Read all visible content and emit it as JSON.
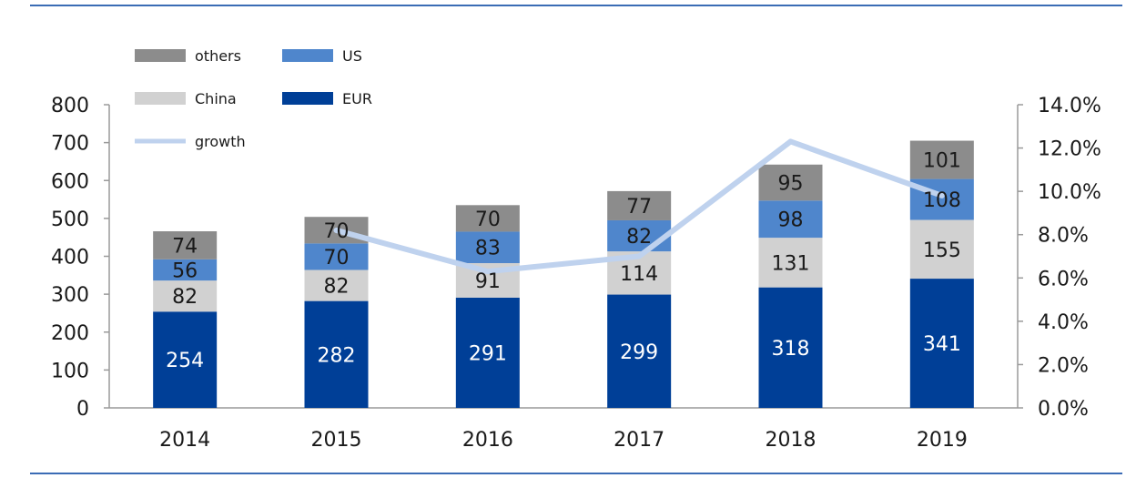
{
  "chart_data": {
    "type": "bar",
    "stacked": true,
    "categories": [
      "2014",
      "2015",
      "2016",
      "2017",
      "2018",
      "2019"
    ],
    "series": [
      {
        "name": "EUR",
        "values": [
          254,
          282,
          291,
          299,
          318,
          341
        ],
        "color": "#003f97",
        "label_color": "#ffffff"
      },
      {
        "name": "China",
        "values": [
          82,
          82,
          91,
          114,
          131,
          155
        ],
        "color": "#d1d1d1",
        "label_color": "#1a1a1a"
      },
      {
        "name": "US",
        "values": [
          56,
          70,
          83,
          82,
          98,
          108
        ],
        "color": "#4f86cc",
        "label_color": "#1a1a1a"
      },
      {
        "name": "others",
        "values": [
          74,
          70,
          70,
          77,
          95,
          101
        ],
        "color": "#8c8c8c",
        "label_color": "#1a1a1a"
      }
    ],
    "line_series": {
      "name": "growth",
      "axis": "right",
      "color": "#bfd2ee",
      "values": [
        null,
        8.2,
        6.3,
        7.0,
        12.3,
        9.8
      ]
    },
    "y_left": {
      "ticks": [
        "0",
        "100",
        "200",
        "300",
        "400",
        "500",
        "600",
        "700",
        "800"
      ],
      "ylim": [
        0,
        800
      ]
    },
    "y_right": {
      "ticks": [
        "0.0%",
        "2.0%",
        "4.0%",
        "6.0%",
        "8.0%",
        "10.0%",
        "12.0%",
        "14.0%"
      ],
      "ylim": [
        0,
        14
      ]
    },
    "legend": {
      "position": "top-left",
      "entries": [
        {
          "name": "others",
          "color": "#8c8c8c",
          "kind": "bar"
        },
        {
          "name": "US",
          "color": "#4f86cc",
          "kind": "bar"
        },
        {
          "name": "China",
          "color": "#d1d1d1",
          "kind": "bar"
        },
        {
          "name": "EUR",
          "color": "#003f97",
          "kind": "bar"
        },
        {
          "name": "growth",
          "color": "#bfd2ee",
          "kind": "line"
        }
      ]
    },
    "rule_color": "#3b6cb5"
  }
}
